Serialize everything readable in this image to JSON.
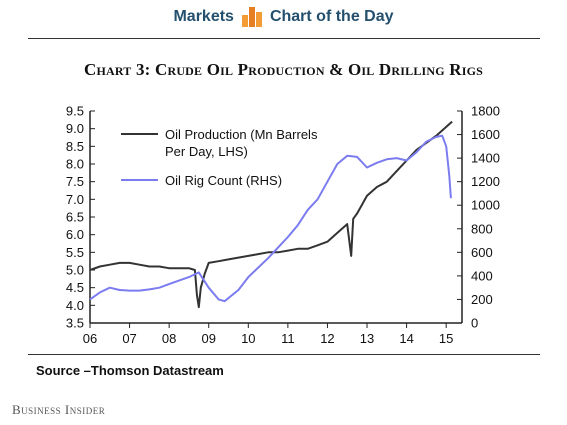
{
  "header": {
    "section": "Markets",
    "feature": "Chart of the Day",
    "logo_icon": "bar-chart-logo-icon",
    "logo_color": "#f39c34",
    "text_color": "#24506e"
  },
  "source": "Source –Thomson Datastream",
  "brand": "Business Insider",
  "chart_data": {
    "type": "line",
    "title": "Chart 3: Crude Oil Production & Oil Drilling Rigs",
    "x_ticks": [
      "06",
      "07",
      "08",
      "09",
      "10",
      "11",
      "12",
      "13",
      "14",
      "15"
    ],
    "xlim": [
      2006,
      2015.4
    ],
    "y_left_ticks": [
      "3.5",
      "4.0",
      "4.5",
      "5.0",
      "5.5",
      "6.0",
      "6.5",
      "7.0",
      "7.5",
      "8.0",
      "8.5",
      "9.0",
      "9.5"
    ],
    "ylim_left": [
      3.5,
      9.5
    ],
    "y_right_ticks": [
      "0",
      "200",
      "400",
      "600",
      "800",
      "1000",
      "1200",
      "1400",
      "1600",
      "1800"
    ],
    "ylim_right": [
      0,
      1800
    ],
    "grid": false,
    "legend_position": "top-left",
    "series": [
      {
        "name": "Oil Production (Mn Barrels Per Day, LHS)",
        "legend_lines": [
          "Oil Production (Mn Barrels",
          "Per Day, LHS)"
        ],
        "axis": "left",
        "color": "#333333",
        "points": [
          [
            2006.0,
            5.0
          ],
          [
            2006.25,
            5.1
          ],
          [
            2006.5,
            5.15
          ],
          [
            2006.75,
            5.2
          ],
          [
            2007.0,
            5.2
          ],
          [
            2007.25,
            5.15
          ],
          [
            2007.5,
            5.1
          ],
          [
            2007.75,
            5.1
          ],
          [
            2008.0,
            5.05
          ],
          [
            2008.25,
            5.05
          ],
          [
            2008.5,
            5.05
          ],
          [
            2008.65,
            5.0
          ],
          [
            2008.7,
            4.3
          ],
          [
            2008.75,
            3.95
          ],
          [
            2008.8,
            4.5
          ],
          [
            2008.9,
            4.9
          ],
          [
            2009.0,
            5.2
          ],
          [
            2009.25,
            5.25
          ],
          [
            2009.5,
            5.3
          ],
          [
            2009.75,
            5.35
          ],
          [
            2010.0,
            5.4
          ],
          [
            2010.25,
            5.45
          ],
          [
            2010.5,
            5.5
          ],
          [
            2010.75,
            5.5
          ],
          [
            2011.0,
            5.55
          ],
          [
            2011.25,
            5.6
          ],
          [
            2011.5,
            5.6
          ],
          [
            2011.75,
            5.7
          ],
          [
            2012.0,
            5.8
          ],
          [
            2012.25,
            6.05
          ],
          [
            2012.5,
            6.3
          ],
          [
            2012.6,
            5.4
          ],
          [
            2012.65,
            6.45
          ],
          [
            2012.75,
            6.6
          ],
          [
            2013.0,
            7.1
          ],
          [
            2013.25,
            7.35
          ],
          [
            2013.5,
            7.5
          ],
          [
            2013.75,
            7.8
          ],
          [
            2014.0,
            8.1
          ],
          [
            2014.25,
            8.4
          ],
          [
            2014.5,
            8.6
          ],
          [
            2014.75,
            8.8
          ],
          [
            2015.0,
            9.05
          ],
          [
            2015.15,
            9.2
          ]
        ]
      },
      {
        "name": "Oil Rig Count (RHS)",
        "axis": "right",
        "color": "#7b7cf0",
        "points": [
          [
            2006.0,
            200
          ],
          [
            2006.25,
            260
          ],
          [
            2006.5,
            300
          ],
          [
            2006.75,
            280
          ],
          [
            2007.0,
            275
          ],
          [
            2007.25,
            275
          ],
          [
            2007.5,
            285
          ],
          [
            2007.75,
            300
          ],
          [
            2008.0,
            330
          ],
          [
            2008.25,
            360
          ],
          [
            2008.5,
            390
          ],
          [
            2008.75,
            430
          ],
          [
            2009.0,
            300
          ],
          [
            2009.25,
            200
          ],
          [
            2009.4,
            185
          ],
          [
            2009.75,
            280
          ],
          [
            2010.0,
            390
          ],
          [
            2010.25,
            470
          ],
          [
            2010.5,
            550
          ],
          [
            2010.75,
            640
          ],
          [
            2011.0,
            730
          ],
          [
            2011.25,
            830
          ],
          [
            2011.5,
            960
          ],
          [
            2011.75,
            1050
          ],
          [
            2012.0,
            1200
          ],
          [
            2012.25,
            1350
          ],
          [
            2012.5,
            1420
          ],
          [
            2012.75,
            1410
          ],
          [
            2013.0,
            1320
          ],
          [
            2013.25,
            1360
          ],
          [
            2013.5,
            1390
          ],
          [
            2013.75,
            1400
          ],
          [
            2014.0,
            1380
          ],
          [
            2014.25,
            1450
          ],
          [
            2014.5,
            1540
          ],
          [
            2014.75,
            1580
          ],
          [
            2014.9,
            1590
          ],
          [
            2015.0,
            1500
          ],
          [
            2015.08,
            1250
          ],
          [
            2015.12,
            1060
          ]
        ]
      }
    ]
  }
}
